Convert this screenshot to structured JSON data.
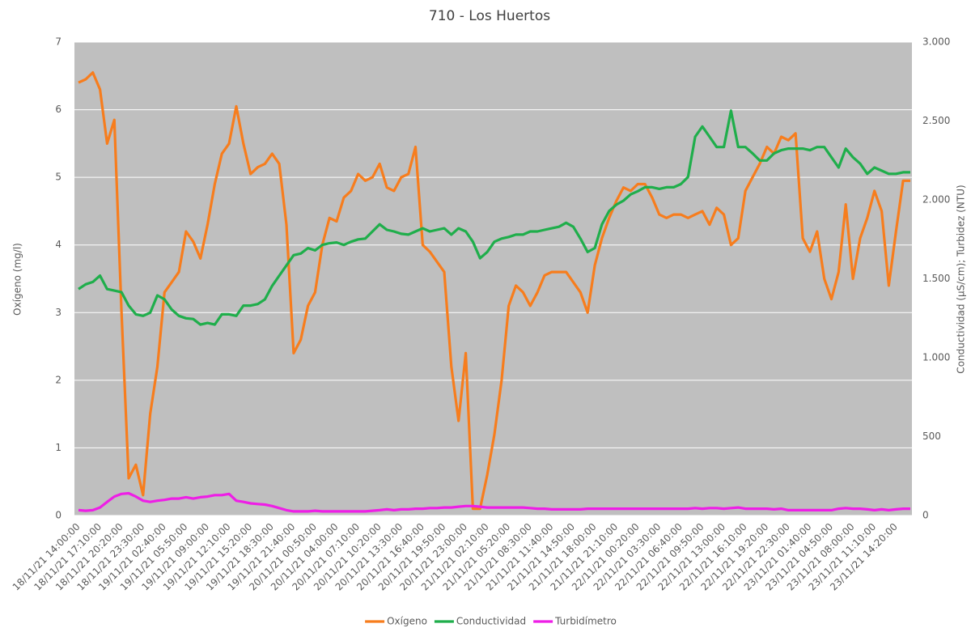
{
  "chart_data": {
    "type": "line",
    "title": "710 - Los Huertos",
    "ylabel": "Oxígeno (mg/l)",
    "y2label": "Conductividad (µS/cm); Turbidez (NTU)",
    "categories": [
      "18/11/21 14:00:00",
      null,
      null,
      "18/11/21 17:10:00",
      null,
      null,
      "18/11/21 20:20:00",
      null,
      null,
      "18/11/21 23:30:00",
      null,
      null,
      "19/11/21 02:40:00",
      null,
      null,
      "19/11/21 05:50:00",
      null,
      null,
      "19/11/21 09:00:00",
      null,
      null,
      "19/11/21 12:10:00",
      null,
      null,
      "19/11/21 15:20:00",
      null,
      null,
      "19/11/21 18:30:00",
      null,
      null,
      "19/11/21 21:40:00",
      null,
      null,
      "20/11/21 00:50:00",
      null,
      null,
      "20/11/21 04:00:00",
      null,
      null,
      "20/11/21 07:10:00",
      null,
      null,
      "20/11/21 10:20:00",
      null,
      null,
      "20/11/21 13:30:00",
      null,
      null,
      "20/11/21 16:40:00",
      null,
      null,
      "20/11/21 19:50:00",
      null,
      null,
      "20/11/21 23:00:00",
      null,
      null,
      "21/11/21 02:10:00",
      null,
      null,
      "21/11/21 05:20:00",
      null,
      null,
      "21/11/21 08:30:00",
      null,
      null,
      "21/11/21 11:40:00",
      null,
      null,
      "21/11/21 14:50:00",
      null,
      null,
      "21/11/21 18:00:00",
      null,
      null,
      "21/11/21 21:10:00",
      null,
      null,
      "22/11/21 00:20:00",
      null,
      null,
      "22/11/21 03:30:00",
      null,
      null,
      "22/11/21 06:40:00",
      null,
      null,
      "22/11/21 09:50:00",
      null,
      null,
      "22/11/21 13:00:00",
      null,
      null,
      "22/11/21 16:10:00",
      null,
      null,
      "22/11/21 19:20:00",
      null,
      null,
      "22/11/21 22:30:00",
      null,
      null,
      "23/11/21 01:40:00",
      null,
      null,
      "23/11/21 04:50:00",
      null,
      null,
      "23/11/21 08:00:00",
      null,
      null,
      "23/11/21 11:10:00",
      null,
      null,
      "23/11/21 14:20:00",
      null,
      null
    ],
    "series": [
      {
        "name": "Oxígeno",
        "color": "#f77d1d",
        "values": [
          6.4,
          6.45,
          6.55,
          6.3,
          5.5,
          5.85,
          3.0,
          0.55,
          0.75,
          0.3,
          1.5,
          2.2,
          3.3,
          3.45,
          3.6,
          4.2,
          4.05,
          3.8,
          4.3,
          4.9,
          5.35,
          5.5,
          6.05,
          5.5,
          5.05,
          5.15,
          5.2,
          5.35,
          5.2,
          4.3,
          2.4,
          2.6,
          3.1,
          3.3,
          4.0,
          4.4,
          4.35,
          4.7,
          4.8,
          5.05,
          4.95,
          5.0,
          5.2,
          4.85,
          4.8,
          5.0,
          5.05,
          5.45,
          4.0,
          3.9,
          3.75,
          3.6,
          2.2,
          1.4,
          2.4,
          0.1,
          0.1,
          0.6,
          1.2,
          2.0,
          3.1,
          3.4,
          3.3,
          3.1,
          3.3,
          3.55,
          3.6,
          3.6,
          3.6,
          3.45,
          3.3,
          3.0,
          3.7,
          4.1,
          4.4,
          4.65,
          4.85,
          4.8,
          4.9,
          4.9,
          4.7,
          4.45,
          4.4,
          4.45,
          4.45,
          4.4,
          4.45,
          4.5,
          4.3,
          4.55,
          4.45,
          4.0,
          4.1,
          4.8,
          5.0,
          5.2,
          5.45,
          5.35,
          5.6,
          5.55,
          5.65,
          4.1,
          3.9,
          4.2,
          3.5,
          3.2,
          3.6,
          4.6,
          3.5,
          4.1,
          4.4,
          4.8,
          4.5,
          3.4,
          4.2,
          4.95,
          4.95
        ]
      },
      {
        "name": "Conductividad",
        "color": "#1fae4b",
        "axis": "y2",
        "values": [
          1435,
          1465,
          1480,
          1520,
          1435,
          1425,
          1415,
          1330,
          1275,
          1265,
          1285,
          1395,
          1370,
          1305,
          1265,
          1250,
          1245,
          1210,
          1220,
          1210,
          1275,
          1275,
          1265,
          1330,
          1330,
          1340,
          1370,
          1455,
          1520,
          1585,
          1650,
          1660,
          1695,
          1680,
          1715,
          1725,
          1730,
          1715,
          1735,
          1750,
          1755,
          1800,
          1845,
          1810,
          1800,
          1785,
          1780,
          1800,
          1820,
          1800,
          1810,
          1820,
          1780,
          1820,
          1800,
          1735,
          1630,
          1670,
          1735,
          1755,
          1765,
          1780,
          1780,
          1800,
          1800,
          1810,
          1820,
          1830,
          1855,
          1830,
          1755,
          1670,
          1695,
          1845,
          1930,
          1970,
          1995,
          2035,
          2055,
          2080,
          2080,
          2070,
          2080,
          2080,
          2100,
          2145,
          2400,
          2465,
          2400,
          2335,
          2335,
          2565,
          2335,
          2335,
          2295,
          2250,
          2250,
          2295,
          2315,
          2325,
          2325,
          2325,
          2315,
          2335,
          2335,
          2270,
          2205,
          2325,
          2270,
          2230,
          2165,
          2205,
          2185,
          2165,
          2165,
          2175,
          2175
        ]
      },
      {
        "name": "Turbidímetro",
        "color": "#ee1ee6",
        "axis": "y2",
        "values": [
          34,
          30,
          34,
          51,
          86,
          120,
          137,
          141,
          120,
          94,
          86,
          94,
          99,
          107,
          107,
          116,
          107,
          116,
          120,
          129,
          129,
          137,
          94,
          86,
          77,
          73,
          69,
          60,
          47,
          34,
          26,
          26,
          26,
          30,
          26,
          26,
          26,
          26,
          26,
          26,
          26,
          30,
          34,
          39,
          34,
          39,
          39,
          43,
          43,
          47,
          47,
          51,
          51,
          56,
          60,
          60,
          56,
          51,
          51,
          51,
          51,
          51,
          51,
          47,
          43,
          43,
          39,
          39,
          39,
          39,
          39,
          43,
          43,
          43,
          43,
          43,
          43,
          43,
          43,
          43,
          43,
          43,
          43,
          43,
          43,
          43,
          47,
          43,
          47,
          47,
          43,
          47,
          51,
          43,
          43,
          43,
          43,
          39,
          43,
          34,
          34,
          34,
          34,
          34,
          34,
          34,
          43,
          47,
          43,
          43,
          39,
          34,
          39,
          34,
          39,
          43,
          43
        ]
      }
    ],
    "ylim": [
      0,
      7
    ],
    "yticks": [
      0,
      1,
      2,
      3,
      4,
      5,
      6,
      7
    ],
    "y2lim": [
      0,
      3000
    ],
    "y2ticks": [
      0,
      {
        "value": 500,
        "label": "500"
      },
      {
        "value": 1000,
        "label": "1.000"
      },
      {
        "value": 1500,
        "label": "1.500"
      },
      {
        "value": 2000,
        "label": "2.000"
      },
      {
        "value": 2500,
        "label": "2.500"
      },
      {
        "value": 3000,
        "label": "3.000"
      }
    ],
    "grid": true,
    "legend": "bottom"
  }
}
